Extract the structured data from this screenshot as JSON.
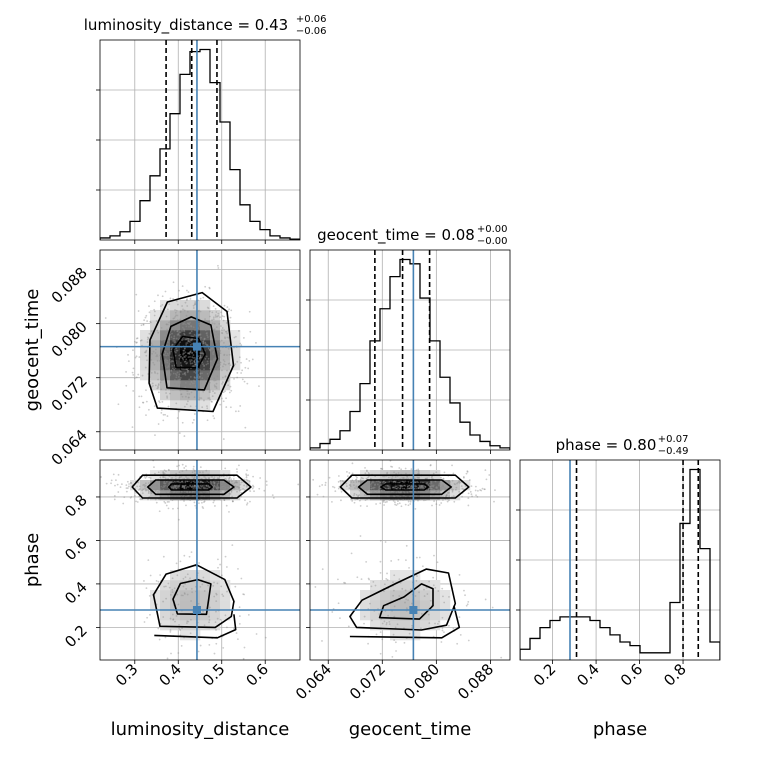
{
  "chart_data": {
    "type": "corner",
    "parameters": [
      {
        "key": "luminosity_distance",
        "label": "luminosity_distance",
        "title_text": "luminosity_distance = 0.43",
        "err_plus": "+0.06",
        "err_minus": "−0.06",
        "range": [
          0.22,
          0.68
        ],
        "ticks": [
          0.3,
          0.4,
          0.5,
          0.6
        ],
        "tick_labels": [
          "0.3",
          "0.4",
          "0.5",
          "0.6"
        ],
        "quantiles": [
          0.372,
          0.431,
          0.489
        ],
        "truth": 0.443
      },
      {
        "key": "geocent_time",
        "label": "geocent_time",
        "title_text": "geocent_time = 0.08",
        "err_plus": "+0.00",
        "err_minus": "−0.00",
        "range": [
          0.0613,
          0.0909
        ],
        "ticks": [
          0.064,
          0.072,
          0.08,
          0.088
        ],
        "tick_labels": [
          "0.064",
          "0.072",
          "0.080",
          "0.088"
        ],
        "quantiles": [
          0.0709,
          0.075,
          0.079
        ],
        "truth": 0.0766
      },
      {
        "key": "phase",
        "label": "phase",
        "title_text": "phase = 0.80",
        "err_plus": "+0.07",
        "err_minus": "−0.49",
        "range": [
          0.05,
          0.97
        ],
        "ticks": [
          0.2,
          0.4,
          0.6,
          0.8
        ],
        "tick_labels": [
          "0.2",
          "0.4",
          "0.6",
          "0.8"
        ],
        "quantiles": [
          0.31,
          0.8,
          0.87
        ],
        "truth": 0.28
      }
    ],
    "marginals": {
      "luminosity_distance": {
        "bin_edges": [
          0.22,
          0.243,
          0.266,
          0.289,
          0.312,
          0.335,
          0.358,
          0.381,
          0.404,
          0.427,
          0.45,
          0.473,
          0.496,
          0.519,
          0.542,
          0.565,
          0.588,
          0.611,
          0.634,
          0.657,
          0.68
        ],
        "counts": [
          1,
          2,
          4,
          9,
          19,
          31,
          44,
          61,
          80,
          91,
          92,
          76,
          57,
          34,
          17,
          9,
          5,
          2,
          1,
          0.4
        ]
      },
      "geocent_time": {
        "bin_edges": [
          0.0613,
          0.06278,
          0.06426,
          0.06574,
          0.06722,
          0.0687,
          0.07018,
          0.07166,
          0.07314,
          0.07462,
          0.0761,
          0.07758,
          0.07906,
          0.08054,
          0.08202,
          0.0835,
          0.08498,
          0.08646,
          0.08794,
          0.08942,
          0.0909
        ],
        "counts": [
          1,
          3,
          5,
          9,
          18,
          31,
          51,
          66,
          81,
          89,
          87,
          71,
          51,
          34,
          22,
          13,
          7,
          4,
          2,
          1
        ]
      },
      "phase": {
        "bin_edges": [
          0.05,
          0.096,
          0.142,
          0.188,
          0.234,
          0.28,
          0.326,
          0.372,
          0.418,
          0.464,
          0.51,
          0.556,
          0.602,
          0.648,
          0.694,
          0.74,
          0.786,
          0.832,
          0.878,
          0.924,
          0.97
        ],
        "counts": [
          3,
          6,
          9,
          11,
          12,
          12,
          12,
          11,
          9,
          7,
          5,
          4,
          2,
          2,
          2,
          16,
          38,
          53,
          31,
          5
        ]
      }
    },
    "joint": [
      {
        "x": "luminosity_distance",
        "y": "geocent_time",
        "modes": [
          {
            "cx": 0.425,
            "cy": 0.0755,
            "sx": 0.05,
            "sy": 0.0037,
            "w": 1
          }
        ],
        "contours": [
          [
            [
              0.395,
              0.0735
            ],
            [
              0.445,
              0.0735
            ],
            [
              0.462,
              0.0755
            ],
            [
              0.447,
              0.0778
            ],
            [
              0.41,
              0.0781
            ],
            [
              0.388,
              0.0762
            ]
          ],
          [
            [
              0.374,
              0.0705
            ],
            [
              0.46,
              0.0702
            ],
            [
              0.49,
              0.0748
            ],
            [
              0.475,
              0.0798
            ],
            [
              0.43,
              0.081
            ],
            [
              0.383,
              0.0796
            ],
            [
              0.363,
              0.0755
            ]
          ],
          [
            [
              0.352,
              0.0675
            ],
            [
              0.48,
              0.067
            ],
            [
              0.527,
              0.0738
            ],
            [
              0.512,
              0.0818
            ],
            [
              0.455,
              0.0846
            ],
            [
              0.375,
              0.0832
            ],
            [
              0.335,
              0.0776
            ],
            [
              0.333,
              0.0712
            ]
          ]
        ]
      },
      {
        "x": "luminosity_distance",
        "y": "phase",
        "modes": [
          {
            "cx": 0.43,
            "cy": 0.845,
            "sx": 0.06,
            "sy": 0.032,
            "w": 1
          },
          {
            "cx": 0.43,
            "cy": 0.32,
            "sx": 0.062,
            "sy": 0.11,
            "w": 0.22
          }
        ],
        "contours": [
          [
            [
              0.385,
              0.832
            ],
            [
              0.47,
              0.832
            ],
            [
              0.478,
              0.846
            ],
            [
              0.47,
              0.86
            ],
            [
              0.385,
              0.86
            ],
            [
              0.378,
              0.846
            ]
          ],
          [
            [
              0.348,
              0.812
            ],
            [
              0.505,
              0.812
            ],
            [
              0.528,
              0.846
            ],
            [
              0.505,
              0.878
            ],
            [
              0.348,
              0.878
            ],
            [
              0.33,
              0.846
            ]
          ],
          [
            [
              0.318,
              0.795
            ],
            [
              0.535,
              0.795
            ],
            [
              0.567,
              0.846
            ],
            [
              0.535,
              0.9
            ],
            [
              0.318,
              0.9
            ],
            [
              0.294,
              0.846
            ]
          ],
          [
            [
              0.398,
              0.262
            ],
            [
              0.465,
              0.26
            ],
            [
              0.47,
              0.33
            ],
            [
              0.475,
              0.4
            ],
            [
              0.445,
              0.42
            ],
            [
              0.405,
              0.402
            ],
            [
              0.388,
              0.33
            ]
          ],
          [
            [
              0.358,
              0.205
            ],
            [
              0.485,
              0.2
            ],
            [
              0.522,
              0.25
            ],
            [
              0.528,
              0.32
            ],
            [
              0.507,
              0.42
            ],
            [
              0.442,
              0.488
            ],
            [
              0.372,
              0.445
            ],
            [
              0.343,
              0.35
            ]
          ],
          [
            [
              0.345,
              0.163
            ],
            [
              0.49,
              0.152
            ],
            [
              0.532,
              0.19
            ],
            [
              0.528,
              0.26
            ]
          ]
        ]
      },
      {
        "x": "geocent_time",
        "y": "phase",
        "modes": [
          {
            "cx": 0.0752,
            "cy": 0.845,
            "sx": 0.0042,
            "sy": 0.032,
            "w": 1
          },
          {
            "cx": 0.0752,
            "cy": 0.3,
            "sx": 0.0046,
            "sy": 0.1,
            "w": 0.22
          }
        ],
        "contours": [
          [
            [
              0.0725,
              0.832
            ],
            [
              0.0782,
              0.832
            ],
            [
              0.0788,
              0.846
            ],
            [
              0.0782,
              0.86
            ],
            [
              0.0725,
              0.86
            ],
            [
              0.0718,
              0.846
            ]
          ],
          [
            [
              0.0698,
              0.812
            ],
            [
              0.0808,
              0.812
            ],
            [
              0.0822,
              0.846
            ],
            [
              0.0808,
              0.878
            ],
            [
              0.0698,
              0.878
            ],
            [
              0.0685,
              0.846
            ]
          ],
          [
            [
              0.0675,
              0.795
            ],
            [
              0.0828,
              0.795
            ],
            [
              0.0848,
              0.846
            ],
            [
              0.0828,
              0.9
            ],
            [
              0.0675,
              0.9
            ],
            [
              0.0658,
              0.846
            ]
          ],
          [
            [
              0.0716,
              0.245
            ],
            [
              0.0775,
              0.238
            ],
            [
              0.0795,
              0.3
            ],
            [
              0.0795,
              0.378
            ],
            [
              0.0778,
              0.4
            ],
            [
              0.0752,
              0.34
            ],
            [
              0.0722,
              0.3
            ]
          ],
          [
            [
              0.0682,
              0.2
            ],
            [
              0.0778,
              0.188
            ],
            [
              0.0815,
              0.21
            ],
            [
              0.0828,
              0.31
            ],
            [
              0.0818,
              0.45
            ],
            [
              0.0785,
              0.468
            ],
            [
              0.074,
              0.402
            ],
            [
              0.069,
              0.325
            ],
            [
              0.0672,
              0.25
            ]
          ],
          [
            [
              0.0672,
              0.158
            ],
            [
              0.0808,
              0.152
            ],
            [
              0.0834,
              0.2
            ],
            [
              0.0826,
              0.3
            ]
          ]
        ]
      }
    ]
  }
}
